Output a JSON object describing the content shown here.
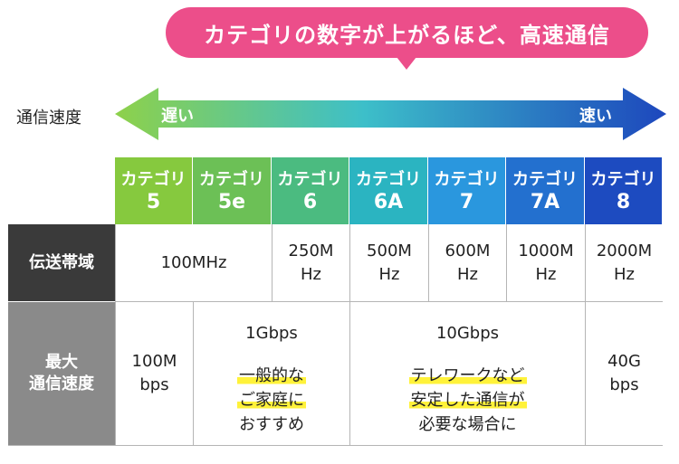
{
  "header": {
    "bubble_text": "カテゴリの数字が上がるほど、高速通信"
  },
  "speed_axis": {
    "label": "通信速度",
    "slow": "遅い",
    "fast": "速い"
  },
  "categories": [
    {
      "name": "カテゴリ",
      "num": "5",
      "color": "#86c93e"
    },
    {
      "name": "カテゴリ",
      "num": "5e",
      "color": "#6cc056"
    },
    {
      "name": "カテゴリ",
      "num": "6",
      "color": "#4bbb80"
    },
    {
      "name": "カテゴリ",
      "num": "6A",
      "color": "#2bb4c1"
    },
    {
      "name": "カテゴリ",
      "num": "7",
      "color": "#2a97de"
    },
    {
      "name": "カテゴリ",
      "num": "7A",
      "color": "#2370cf"
    },
    {
      "name": "カテゴリ",
      "num": "8",
      "color": "#1d4bc0"
    }
  ],
  "bandwidth": {
    "label": "伝送帯域",
    "values": [
      {
        "l1": "100MHz",
        "l2": ""
      },
      {
        "l1": "250M",
        "l2": "Hz"
      },
      {
        "l1": "500M",
        "l2": "Hz"
      },
      {
        "l1": "600M",
        "l2": "Hz"
      },
      {
        "l1": "1000M",
        "l2": "Hz"
      },
      {
        "l1": "2000M",
        "l2": "Hz"
      }
    ]
  },
  "max_speed": {
    "label_l1": "最大",
    "label_l2": "通信速度",
    "cat5": {
      "l1": "100M",
      "l2": "bps"
    },
    "gbps1": {
      "speed": "1Gbps",
      "note": [
        "一般的な",
        "ご家庭に",
        "おすすめ"
      ]
    },
    "gbps10": {
      "speed": "10Gbps",
      "note": [
        "テレワークなど",
        "安定した通信が",
        "必要な場合に"
      ]
    },
    "cat8": {
      "l1": "40G",
      "l2": "bps"
    }
  },
  "colors": {
    "bubble": "#ec4e8a",
    "arrow_start": "#8ed14a",
    "arrow_end": "#1d47bd",
    "row_header_dark": "#3a3a3a",
    "row_header_gray": "#8a8a8a",
    "highlight": "#fff23a"
  }
}
